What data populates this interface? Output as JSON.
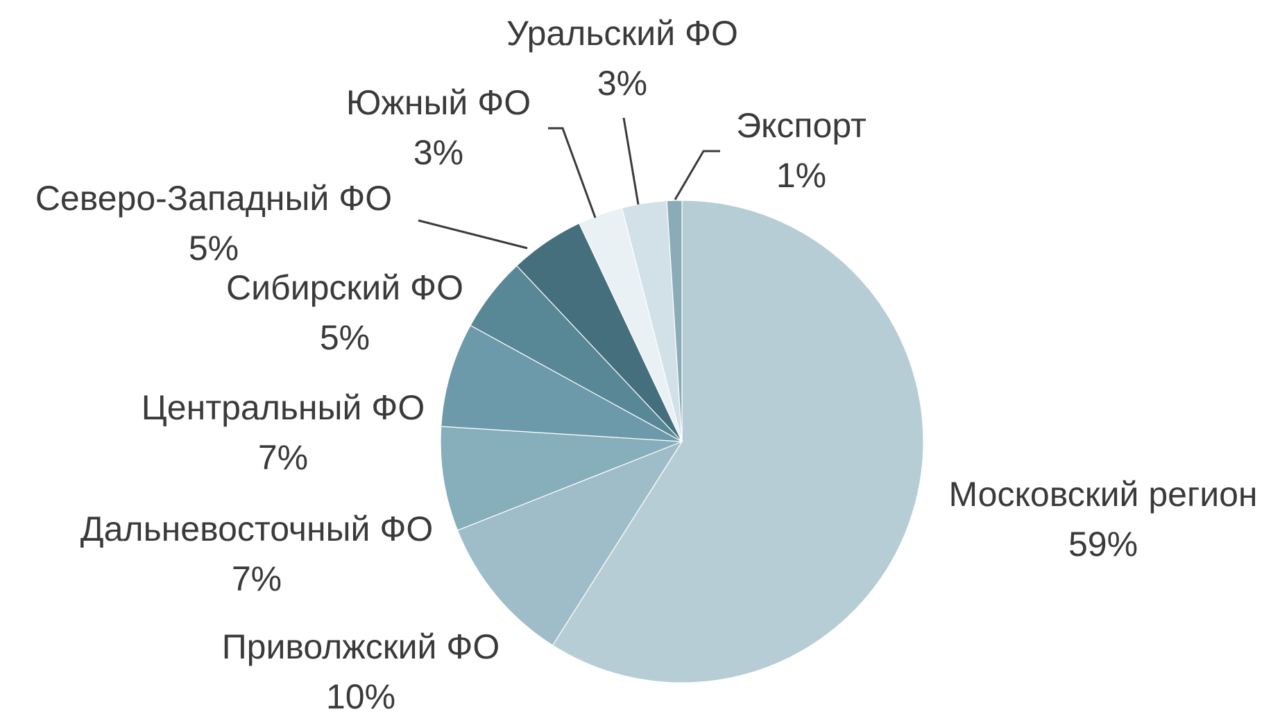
{
  "chart_data": {
    "type": "pie",
    "title": "",
    "start_angle_deg": 0,
    "direction": "clockwise",
    "slices": [
      {
        "label": "Московский регион",
        "percent_label": "59%",
        "value": 59,
        "color": "#b7cdd5"
      },
      {
        "label": "Приволжский ФО",
        "percent_label": "10%",
        "value": 10,
        "color": "#9ebdc8"
      },
      {
        "label": "Дальневосточный ФО",
        "percent_label": "7%",
        "value": 7,
        "color": "#87aebb"
      },
      {
        "label": "Центральный ФО",
        "percent_label": "7%",
        "value": 7,
        "color": "#6c9aaa"
      },
      {
        "label": "Сибирский ФО",
        "percent_label": "5%",
        "value": 5,
        "color": "#588796"
      },
      {
        "label": "Северо-Западный ФО",
        "percent_label": "5%",
        "value": 5,
        "color": "#456f7d"
      },
      {
        "label": "Южный ФО",
        "percent_label": "3%",
        "value": 3,
        "color": "#eaf1f4"
      },
      {
        "label": "Уральский ФО",
        "percent_label": "3%",
        "value": 3,
        "color": "#d2e1e7"
      },
      {
        "label": "Экспорт",
        "percent_label": "1%",
        "value": 1,
        "color": "#8aacb8"
      }
    ]
  }
}
